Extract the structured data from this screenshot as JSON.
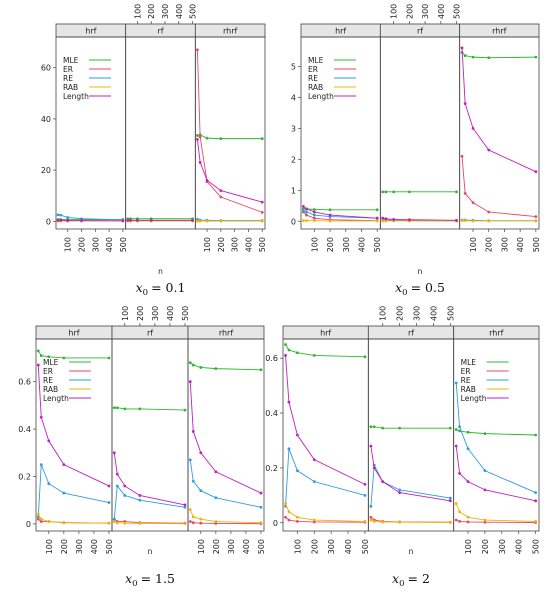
{
  "figure": {
    "subplots": [
      {
        "id": "p01",
        "caption_math": "x",
        "caption_sub": "0",
        "caption_rhs": "= 0.1"
      },
      {
        "id": "p05",
        "caption_math": "x",
        "caption_sub": "0",
        "caption_rhs": "= 0.5"
      },
      {
        "id": "p15",
        "caption_math": "x",
        "caption_sub": "0",
        "caption_rhs": "= 1.5"
      },
      {
        "id": "p2",
        "caption_math": "x",
        "caption_sub": "0",
        "caption_rhs": "= 2"
      }
    ]
  },
  "chart_data": [
    {
      "type": "line",
      "panel_strips": [
        "hrf",
        "rf",
        "rhrf"
      ],
      "xlabel": "n",
      "x": [
        30,
        50,
        100,
        200,
        500
      ],
      "x_ticks": [
        100,
        200,
        300,
        400,
        500
      ],
      "ylim": [
        -3,
        72
      ],
      "y_ticks": [
        0,
        20,
        40,
        60
      ],
      "legend_position": "top-left",
      "legend_panel": 0,
      "series_names": [
        "MLE",
        "ER",
        "RE",
        "RAB",
        "Length"
      ],
      "colors": {
        "MLE": "#2db82d",
        "ER": "#e8476a",
        "RE": "#2d9ee0",
        "RAB": "#f0b400",
        "Length": "#c020c0"
      },
      "panels": [
        {
          "strip": "hrf",
          "series": [
            {
              "name": "MLE",
              "values": [
                0.7,
                0.7,
                0.7,
                0.7,
                0.7
              ]
            },
            {
              "name": "ER",
              "values": [
                0.2,
                0.2,
                0.2,
                0.2,
                0.2
              ]
            },
            {
              "name": "RE",
              "values": [
                2.5,
                2.4,
                1.5,
                1.0,
                0.6
              ]
            },
            {
              "name": "RAB",
              "values": [
                0.1,
                0.1,
                0.1,
                0.1,
                0.1
              ]
            },
            {
              "name": "Length",
              "values": [
                0.4,
                0.4,
                0.3,
                0.3,
                0.2
              ]
            }
          ]
        },
        {
          "strip": "rf",
          "series": [
            {
              "name": "MLE",
              "values": [
                1.0,
                1.0,
                1.0,
                1.0,
                1.0
              ]
            },
            {
              "name": "ER",
              "values": [
                0.2,
                0.2,
                0.2,
                0.2,
                0.2
              ]
            },
            {
              "name": "RE",
              "values": [
                0.3,
                0.3,
                0.3,
                0.3,
                0.3
              ]
            },
            {
              "name": "RAB",
              "values": [
                0.1,
                0.1,
                0.1,
                0.1,
                0.1
              ]
            },
            {
              "name": "Length",
              "values": [
                0.4,
                0.4,
                0.4,
                0.4,
                0.4
              ]
            }
          ]
        },
        {
          "strip": "rhrf",
          "series": [
            {
              "name": "MLE",
              "values": [
                33.5,
                33.8,
                32.5,
                32.3,
                32.3
              ]
            },
            {
              "name": "ER",
              "values": [
                67,
                33,
                15.5,
                9.5,
                3.5
              ]
            },
            {
              "name": "RE",
              "values": [
                0.8,
                0.5,
                0.4,
                0.3,
                0.3
              ]
            },
            {
              "name": "RAB",
              "values": [
                0.1,
                0.1,
                0.1,
                0.1,
                0.1
              ]
            },
            {
              "name": "Length",
              "values": [
                32,
                23,
                16,
                12,
                7.5
              ]
            }
          ]
        }
      ]
    },
    {
      "type": "line",
      "panel_strips": [
        "hrf",
        "rf",
        "rhrf"
      ],
      "xlabel": "n",
      "x": [
        30,
        50,
        100,
        200,
        500
      ],
      "x_ticks": [
        100,
        200,
        300,
        400,
        500
      ],
      "ylim": [
        -0.25,
        5.95
      ],
      "y_ticks": [
        0,
        1,
        2,
        3,
        4,
        5
      ],
      "legend_position": "top-left",
      "legend_panel": 0,
      "series_names": [
        "MLE",
        "ER",
        "RE",
        "RAB",
        "Length"
      ],
      "colors": {
        "MLE": "#2db82d",
        "ER": "#e8476a",
        "RE": "#2d9ee0",
        "RAB": "#f0b400",
        "Length": "#c020c0"
      },
      "panels": [
        {
          "strip": "hrf",
          "series": [
            {
              "name": "MLE",
              "values": [
                0.4,
                0.4,
                0.38,
                0.37,
                0.37
              ]
            },
            {
              "name": "ER",
              "values": [
                0.3,
                0.2,
                0.1,
                0.05,
                0.02
              ]
            },
            {
              "name": "RE",
              "values": [
                0.35,
                0.3,
                0.2,
                0.15,
                0.1
              ]
            },
            {
              "name": "RAB",
              "values": [
                0.02,
                0.02,
                0.02,
                0.01,
                0.01
              ]
            },
            {
              "name": "Length",
              "values": [
                0.48,
                0.4,
                0.3,
                0.2,
                0.1
              ]
            }
          ]
        },
        {
          "strip": "rf",
          "series": [
            {
              "name": "MLE",
              "values": [
                0.95,
                0.95,
                0.95,
                0.95,
                0.95
              ]
            },
            {
              "name": "ER",
              "values": [
                0.1,
                0.08,
                0.05,
                0.03,
                0.02
              ]
            },
            {
              "name": "RE",
              "values": [
                0.05,
                0.04,
                0.03,
                0.02,
                0.01
              ]
            },
            {
              "name": "RAB",
              "values": [
                0.01,
                0.01,
                0.01,
                0.01,
                0.01
              ]
            },
            {
              "name": "Length",
              "values": [
                0.1,
                0.08,
                0.06,
                0.05,
                0.03
              ]
            }
          ]
        },
        {
          "strip": "rhrf",
          "series": [
            {
              "name": "MLE",
              "values": [
                5.45,
                5.35,
                5.3,
                5.28,
                5.3
              ]
            },
            {
              "name": "ER",
              "values": [
                2.1,
                0.9,
                0.6,
                0.3,
                0.15
              ]
            },
            {
              "name": "RE",
              "values": [
                0.04,
                0.04,
                0.03,
                0.02,
                0.02
              ]
            },
            {
              "name": "RAB",
              "values": [
                0.02,
                0.02,
                0.01,
                0.01,
                0.01
              ]
            },
            {
              "name": "Length",
              "values": [
                5.6,
                3.8,
                3.0,
                2.3,
                1.6
              ]
            }
          ]
        }
      ]
    },
    {
      "type": "line",
      "panel_strips": [
        "hrf",
        "rf",
        "rhrf"
      ],
      "xlabel": "n",
      "x": [
        30,
        50,
        100,
        200,
        500
      ],
      "x_ticks": [
        100,
        200,
        300,
        400,
        500
      ],
      "ylim": [
        -0.03,
        0.78
      ],
      "y_ticks": [
        0.0,
        0.2,
        0.4,
        0.6
      ],
      "legend_position": "top-left",
      "legend_panel": 0,
      "series_names": [
        "MLE",
        "ER",
        "RE",
        "RAB",
        "Length"
      ],
      "colors": {
        "MLE": "#2db82d",
        "ER": "#e8476a",
        "RE": "#2d9ee0",
        "RAB": "#f0b400",
        "Length": "#c020c0"
      },
      "panels": [
        {
          "strip": "hrf",
          "series": [
            {
              "name": "MLE",
              "values": [
                0.73,
                0.71,
                0.705,
                0.7,
                0.7
              ]
            },
            {
              "name": "ER",
              "values": [
                0.02,
                0.01,
                0.01,
                0.005,
                0.003
              ]
            },
            {
              "name": "RE",
              "values": [
                0.03,
                0.25,
                0.17,
                0.13,
                0.09
              ]
            },
            {
              "name": "RAB",
              "values": [
                0.04,
                0.02,
                0.01,
                0.006,
                0.003
              ]
            },
            {
              "name": "Length",
              "values": [
                0.67,
                0.45,
                0.35,
                0.25,
                0.16
              ]
            }
          ]
        },
        {
          "strip": "rf",
          "series": [
            {
              "name": "MLE",
              "values": [
                0.49,
                0.49,
                0.485,
                0.485,
                0.48
              ]
            },
            {
              "name": "ER",
              "values": [
                0.02,
                0.01,
                0.01,
                0.005,
                0.003
              ]
            },
            {
              "name": "RE",
              "values": [
                0.02,
                0.16,
                0.12,
                0.1,
                0.07
              ]
            },
            {
              "name": "RAB",
              "values": [
                0.01,
                0.005,
                0.003,
                0.002,
                0.001
              ]
            },
            {
              "name": "Length",
              "values": [
                0.3,
                0.21,
                0.16,
                0.12,
                0.08
              ]
            }
          ]
        },
        {
          "strip": "rhrf",
          "series": [
            {
              "name": "MLE",
              "values": [
                0.68,
                0.67,
                0.66,
                0.655,
                0.65
              ]
            },
            {
              "name": "ER",
              "values": [
                0.01,
                0.005,
                0.003,
                0.002,
                0.001
              ]
            },
            {
              "name": "RE",
              "values": [
                0.27,
                0.18,
                0.14,
                0.11,
                0.07
              ]
            },
            {
              "name": "RAB",
              "values": [
                0.06,
                0.03,
                0.02,
                0.01,
                0.005
              ]
            },
            {
              "name": "Length",
              "values": [
                0.6,
                0.39,
                0.3,
                0.22,
                0.13
              ]
            }
          ]
        }
      ]
    },
    {
      "type": "line",
      "panel_strips": [
        "hrf",
        "rf",
        "rhrf"
      ],
      "xlabel": "n",
      "x": [
        30,
        50,
        100,
        200,
        500
      ],
      "x_ticks": [
        100,
        200,
        300,
        400,
        500
      ],
      "ylim": [
        -0.03,
        0.67
      ],
      "y_ticks": [
        0.0,
        0.2,
        0.4,
        0.6
      ],
      "legend_position": "top-left",
      "legend_panel": 2,
      "series_names": [
        "MLE",
        "ER",
        "RE",
        "RAB",
        "Length"
      ],
      "colors": {
        "MLE": "#2db82d",
        "ER": "#e8476a",
        "RE": "#2d9ee0",
        "RAB": "#f0b400",
        "Length": "#c020c0"
      },
      "panels": [
        {
          "strip": "hrf",
          "series": [
            {
              "name": "MLE",
              "values": [
                0.65,
                0.63,
                0.62,
                0.61,
                0.605
              ]
            },
            {
              "name": "ER",
              "values": [
                0.02,
                0.01,
                0.005,
                0.003,
                0.002
              ]
            },
            {
              "name": "RE",
              "values": [
                0.06,
                0.27,
                0.19,
                0.15,
                0.1
              ]
            },
            {
              "name": "RAB",
              "values": [
                0.07,
                0.04,
                0.02,
                0.01,
                0.005
              ]
            },
            {
              "name": "Length",
              "values": [
                0.61,
                0.44,
                0.32,
                0.23,
                0.14
              ]
            }
          ]
        },
        {
          "strip": "rf",
          "series": [
            {
              "name": "MLE",
              "values": [
                0.35,
                0.35,
                0.345,
                0.345,
                0.345
              ]
            },
            {
              "name": "ER",
              "values": [
                0.02,
                0.01,
                0.005,
                0.003,
                0.002
              ]
            },
            {
              "name": "RE",
              "values": [
                0.06,
                0.21,
                0.15,
                0.12,
                0.09
              ]
            },
            {
              "name": "RAB",
              "values": [
                0.01,
                0.005,
                0.003,
                0.002,
                0.001
              ]
            },
            {
              "name": "Length",
              "values": [
                0.28,
                0.2,
                0.15,
                0.11,
                0.08
              ]
            }
          ]
        },
        {
          "strip": "rhrf",
          "series": [
            {
              "name": "MLE",
              "values": [
                0.34,
                0.335,
                0.33,
                0.325,
                0.32
              ]
            },
            {
              "name": "ER",
              "values": [
                0.01,
                0.005,
                0.003,
                0.002,
                0.001
              ]
            },
            {
              "name": "RE",
              "values": [
                0.51,
                0.35,
                0.27,
                0.19,
                0.11
              ]
            },
            {
              "name": "RAB",
              "values": [
                0.07,
                0.04,
                0.02,
                0.01,
                0.005
              ]
            },
            {
              "name": "Length",
              "values": [
                0.28,
                0.18,
                0.15,
                0.12,
                0.08
              ]
            }
          ]
        }
      ]
    }
  ]
}
